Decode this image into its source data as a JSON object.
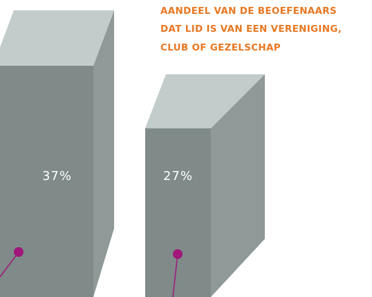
{
  "chart_data": {
    "type": "bar3d",
    "title": [
      "AANDEEL VAN DE BEOEFENAARS",
      "DAT LID IS VAN EEN VERENIGING,",
      "CLUB OF GEZELSCHAP"
    ],
    "categories": [
      null,
      null
    ],
    "values": [
      37,
      27
    ],
    "value_labels": [
      "37%",
      "27%"
    ],
    "color": "#7f8a89"
  }
}
